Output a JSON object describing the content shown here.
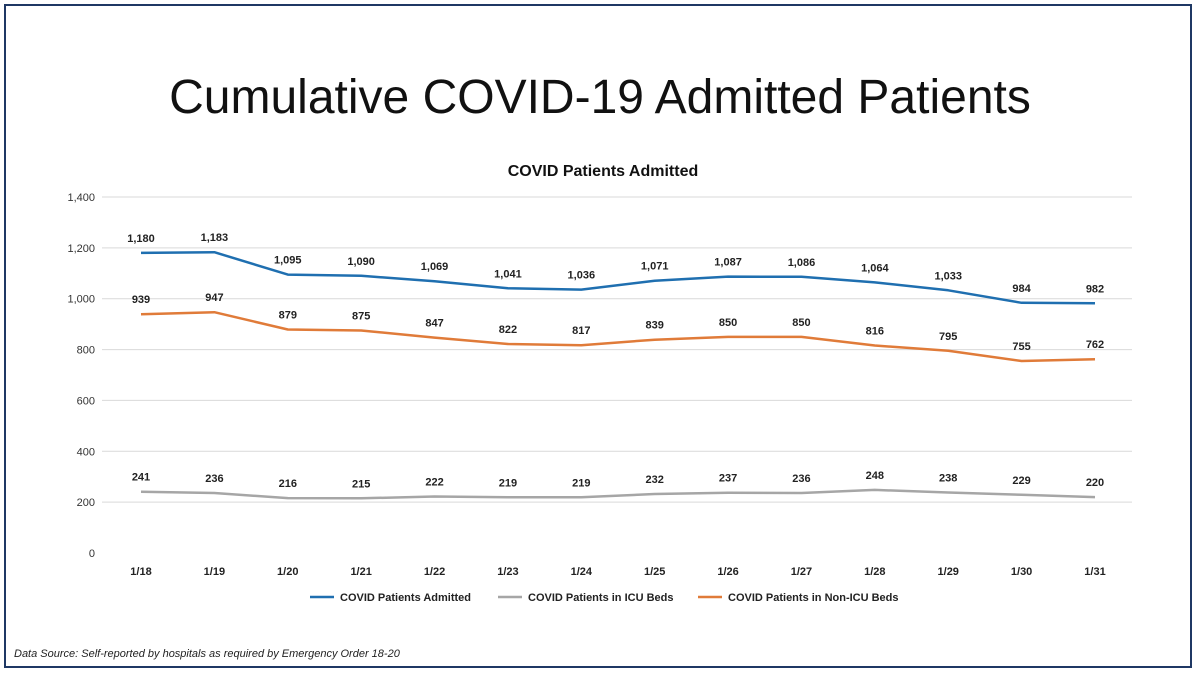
{
  "slide_title": "Cumulative COVID-19 Admitted Patients",
  "source_note": "Data Source: Self-reported by hospitals as required by Emergency Order 18-20",
  "chart_data": {
    "type": "line",
    "title": "COVID Patients Admitted",
    "xlabel": "",
    "ylabel": "",
    "ylim": [
      0,
      1400
    ],
    "yticks": [
      0,
      200,
      400,
      600,
      800,
      1000,
      1200,
      1400
    ],
    "ytick_labels": [
      "0",
      "200",
      "400",
      "600",
      "800",
      "1,000",
      "1,200",
      "1,400"
    ],
    "grid": true,
    "legend_position": "bottom",
    "categories": [
      "1/18",
      "1/19",
      "1/20",
      "1/21",
      "1/22",
      "1/23",
      "1/24",
      "1/25",
      "1/26",
      "1/27",
      "1/28",
      "1/29",
      "1/30",
      "1/31"
    ],
    "series": [
      {
        "name": "COVID Patients Admitted",
        "color": "#1f6fb0",
        "values": [
          1180,
          1183,
          1095,
          1090,
          1069,
          1041,
          1036,
          1071,
          1087,
          1086,
          1064,
          1033,
          984,
          982
        ],
        "labels": [
          "1,180",
          "1,183",
          "1,095",
          "1,090",
          "1,069",
          "1,041",
          "1,036",
          "1,071",
          "1,087",
          "1,086",
          "1,064",
          "1,033",
          "984",
          "982"
        ]
      },
      {
        "name": "COVID Patients in ICU Beds",
        "color": "#a6a6a6",
        "values": [
          241,
          236,
          216,
          215,
          222,
          219,
          219,
          232,
          237,
          236,
          248,
          238,
          229,
          220
        ],
        "labels": [
          "241",
          "236",
          "216",
          "215",
          "222",
          "219",
          "219",
          "232",
          "237",
          "236",
          "248",
          "238",
          "229",
          "220"
        ]
      },
      {
        "name": "COVID Patients in Non-ICU Beds",
        "color": "#e07b39",
        "values": [
          939,
          947,
          879,
          875,
          847,
          822,
          817,
          839,
          850,
          850,
          816,
          795,
          755,
          762
        ],
        "labels": [
          "939",
          "947",
          "879",
          "875",
          "847",
          "822",
          "817",
          "839",
          "850",
          "850",
          "816",
          "795",
          "755",
          "762"
        ]
      }
    ]
  }
}
